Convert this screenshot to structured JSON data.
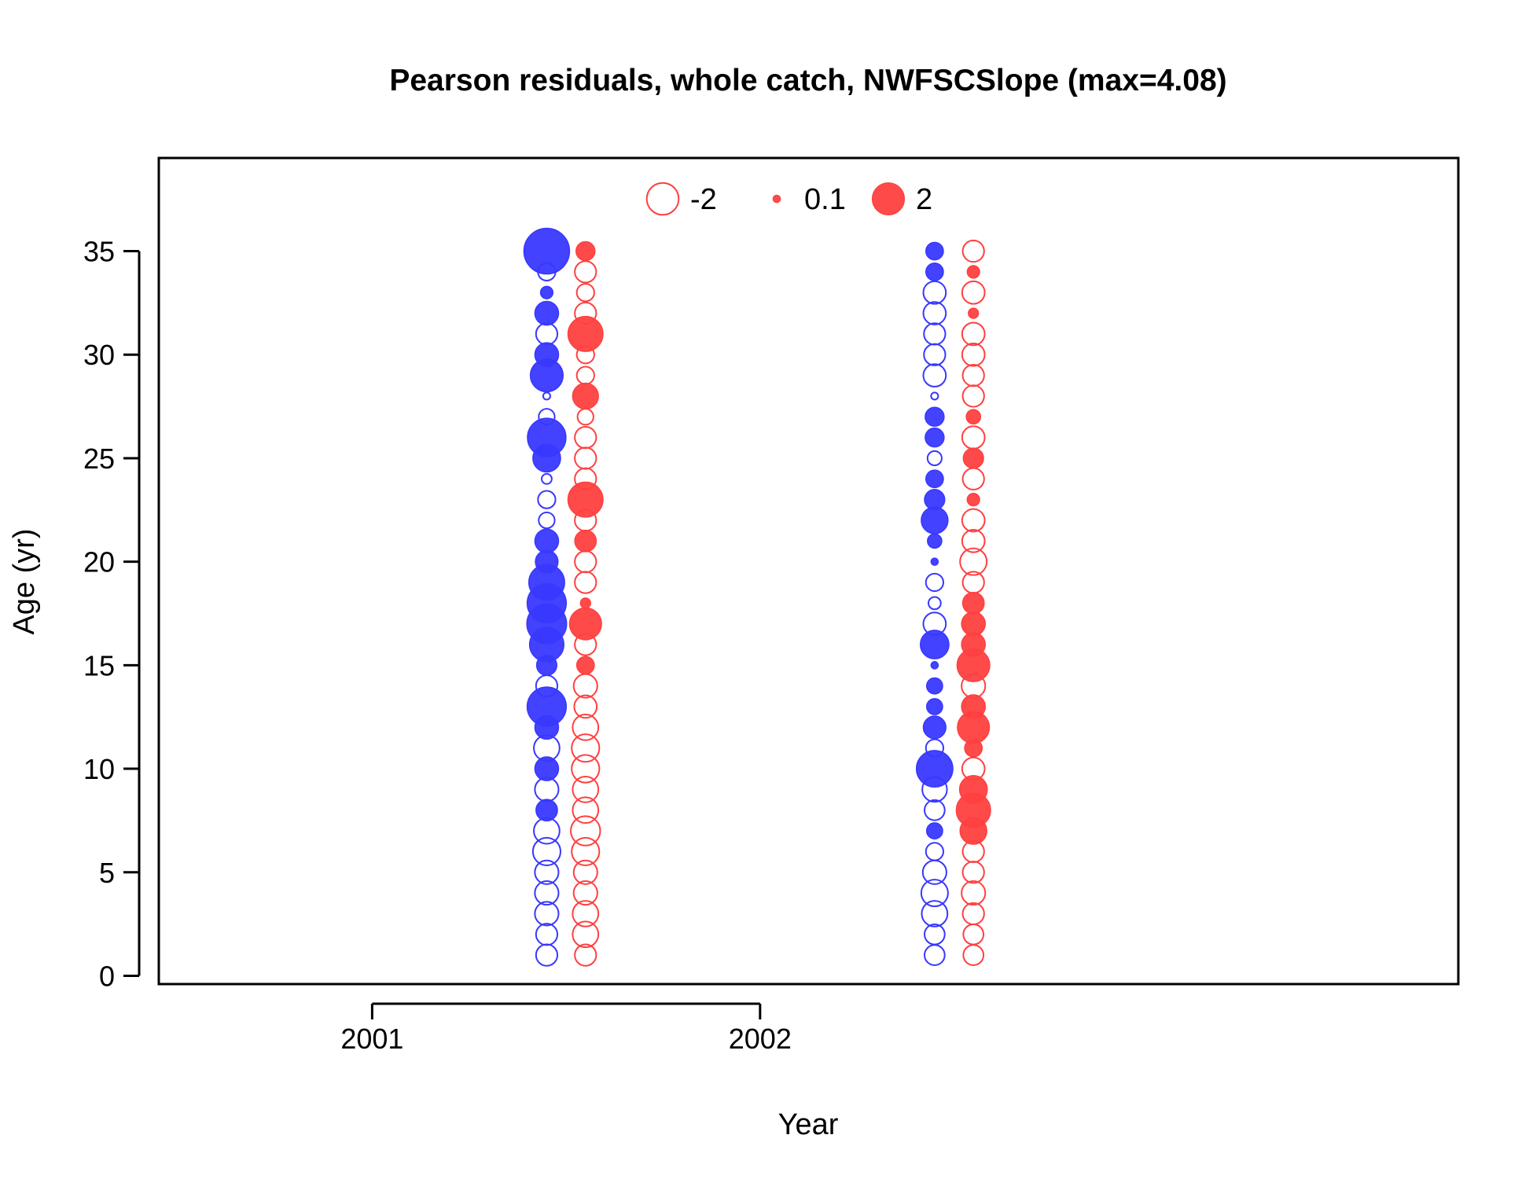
{
  "chart_data": {
    "type": "scatter",
    "subtype": "bubble",
    "title": "Pearson residuals, whole catch, NWFSCSlope (max=4.08)",
    "xlabel": "Year",
    "ylabel": "Age (yr)",
    "xlim": [
      2000.45,
      2003.8
    ],
    "ylim": [
      -0.4,
      39.5
    ],
    "x_ticks": [
      2001,
      2002
    ],
    "y_ticks": [
      0,
      5,
      10,
      15,
      20,
      25,
      30,
      35
    ],
    "grid": false,
    "legend_position": "top-center",
    "legend": [
      {
        "label": "-2",
        "value": -2,
        "filled": false
      },
      {
        "label": "0.1",
        "value": 0.1,
        "filled": true
      },
      {
        "label": "2",
        "value": 2,
        "filled": true
      }
    ],
    "max_abs_residual": 4.08,
    "colors": {
      "female": "#3838ff",
      "male": "#ff4040",
      "axis": "#000000"
    },
    "series": [
      {
        "sex": "female",
        "color": "#3838ff",
        "x": 2001.45,
        "ages": [
          1,
          2,
          3,
          4,
          5,
          6,
          7,
          8,
          9,
          10,
          11,
          12,
          13,
          14,
          15,
          16,
          17,
          18,
          19,
          20,
          21,
          22,
          23,
          24,
          25,
          26,
          27,
          28,
          29,
          30,
          31,
          32,
          33,
          34,
          35
        ],
        "residuals": [
          -0.9,
          -0.9,
          -1.1,
          -1.1,
          -1.1,
          -1.5,
          -1.3,
          0.9,
          -1.1,
          1.1,
          -1.3,
          1.1,
          3.0,
          -0.9,
          0.8,
          2.3,
          3.1,
          3.0,
          2.5,
          1.0,
          1.1,
          -0.5,
          -0.6,
          -0.2,
          1.5,
          2.9,
          -0.5,
          -0.1,
          2.1,
          1.1,
          -0.9,
          1.1,
          0.3,
          -0.6,
          4.08
        ]
      },
      {
        "sex": "male",
        "color": "#ff4040",
        "x": 2001.55,
        "ages": [
          1,
          2,
          3,
          4,
          5,
          6,
          7,
          8,
          9,
          10,
          11,
          12,
          13,
          14,
          15,
          16,
          17,
          18,
          19,
          20,
          21,
          22,
          23,
          24,
          25,
          26,
          27,
          28,
          29,
          30,
          31,
          32,
          33,
          34,
          35
        ],
        "residuals": [
          -0.9,
          -1.3,
          -1.3,
          -1.1,
          -1.1,
          -1.5,
          -1.7,
          -1.3,
          -1.3,
          -1.5,
          -1.5,
          -1.3,
          -1.0,
          -1.1,
          0.6,
          -0.9,
          2.0,
          0.2,
          -0.9,
          -0.9,
          0.9,
          -0.9,
          2.4,
          -0.9,
          -0.9,
          -0.9,
          -0.5,
          1.3,
          -0.6,
          -0.6,
          2.4,
          -0.9,
          -0.6,
          -0.9,
          0.7
        ]
      },
      {
        "sex": "female",
        "color": "#3838ff",
        "x": 2002.45,
        "ages": [
          1,
          2,
          3,
          4,
          5,
          6,
          7,
          8,
          9,
          10,
          11,
          12,
          13,
          14,
          15,
          16,
          17,
          18,
          19,
          20,
          21,
          22,
          23,
          24,
          25,
          26,
          27,
          28,
          29,
          30,
          31,
          32,
          33,
          34,
          35
        ],
        "residuals": [
          -0.8,
          -0.8,
          -1.3,
          -1.4,
          -1.1,
          -0.6,
          0.5,
          -0.8,
          -1.2,
          2.6,
          -0.6,
          1.0,
          0.5,
          0.5,
          0.1,
          1.6,
          -1.0,
          -0.3,
          -0.6,
          0.1,
          0.4,
          1.4,
          0.8,
          0.6,
          -0.4,
          0.7,
          0.7,
          -0.1,
          -1.0,
          -0.9,
          -0.9,
          -1.0,
          -1.0,
          0.6,
          0.6
        ]
      },
      {
        "sex": "male",
        "color": "#ff4040",
        "x": 2002.55,
        "ages": [
          1,
          2,
          3,
          4,
          5,
          6,
          7,
          8,
          9,
          10,
          11,
          12,
          13,
          14,
          15,
          16,
          17,
          18,
          19,
          20,
          21,
          22,
          23,
          24,
          25,
          26,
          27,
          28,
          29,
          30,
          31,
          32,
          33,
          34,
          35
        ],
        "residuals": [
          -0.8,
          -0.8,
          -0.9,
          -1.1,
          -0.9,
          -0.9,
          1.4,
          2.3,
          1.5,
          -1.0,
          0.6,
          2.0,
          1.1,
          -1.1,
          2.1,
          1.1,
          1.1,
          0.9,
          -0.9,
          -1.4,
          -1.0,
          -1.0,
          0.3,
          -0.9,
          0.8,
          -1.0,
          0.4,
          -0.9,
          -0.9,
          -1.0,
          -1.0,
          0.2,
          -1.0,
          0.3,
          -0.9
        ]
      }
    ]
  }
}
